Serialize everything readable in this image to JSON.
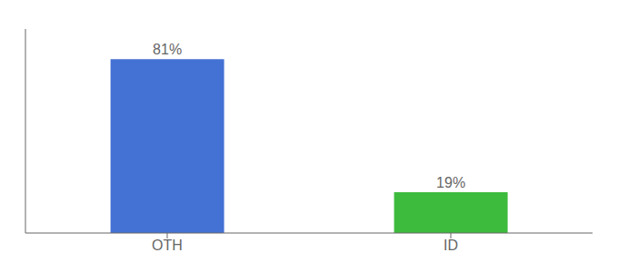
{
  "chart_data": {
    "type": "bar",
    "categories": [
      "OTH",
      "ID"
    ],
    "values": [
      81,
      19
    ],
    "value_labels": [
      "81%",
      "19%"
    ],
    "colors": [
      "#4472d4",
      "#3dbb3d"
    ],
    "ylim": [
      0,
      95
    ],
    "tick_labels": "x",
    "data_labels": true,
    "grid": false
  }
}
